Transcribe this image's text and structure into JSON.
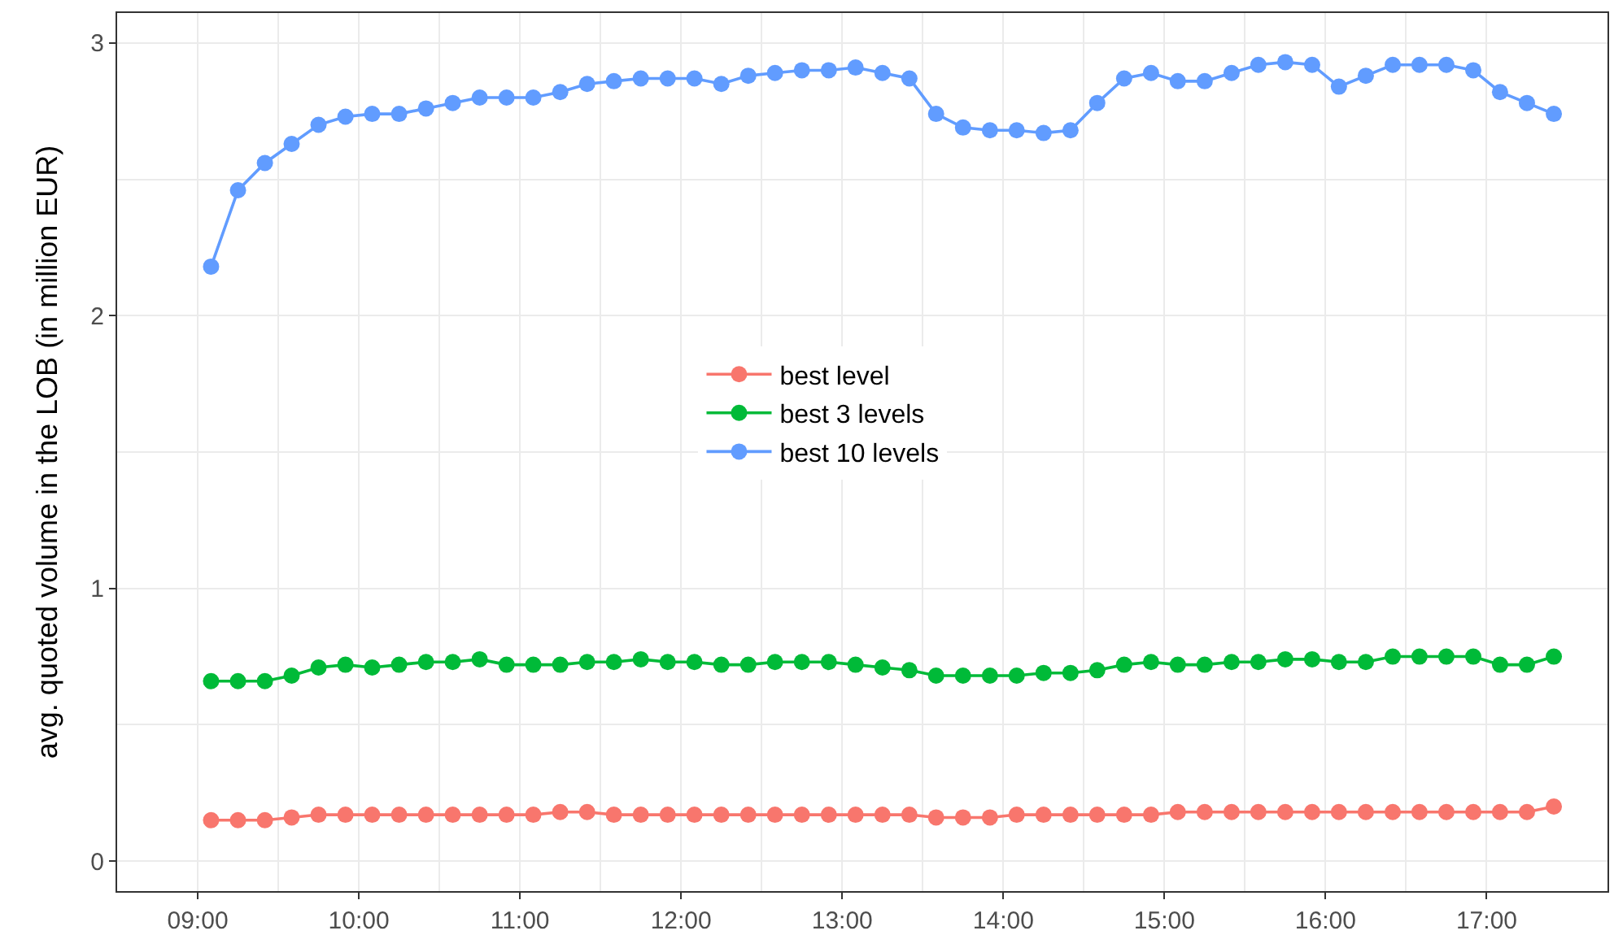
{
  "chart_data": {
    "type": "line",
    "ylabel": "avg. quoted volume in the LOB (in million EUR)",
    "x": [
      9.083,
      9.25,
      9.417,
      9.583,
      9.75,
      9.917,
      10.083,
      10.25,
      10.417,
      10.583,
      10.75,
      10.917,
      11.083,
      11.25,
      11.417,
      11.583,
      11.75,
      11.917,
      12.083,
      12.25,
      12.417,
      12.583,
      12.75,
      12.917,
      13.083,
      13.25,
      13.417,
      13.583,
      13.75,
      13.917,
      14.083,
      14.25,
      14.417,
      14.583,
      14.75,
      14.917,
      15.083,
      15.25,
      15.417,
      15.583,
      15.75,
      15.917,
      16.083,
      16.25,
      16.417,
      16.583,
      16.75,
      16.917,
      17.083,
      17.25,
      17.417
    ],
    "series": [
      {
        "name": "best level",
        "color": "#f8766d",
        "values": [
          0.15,
          0.15,
          0.15,
          0.16,
          0.17,
          0.17,
          0.17,
          0.17,
          0.17,
          0.17,
          0.17,
          0.17,
          0.17,
          0.18,
          0.18,
          0.17,
          0.17,
          0.17,
          0.17,
          0.17,
          0.17,
          0.17,
          0.17,
          0.17,
          0.17,
          0.17,
          0.17,
          0.16,
          0.16,
          0.16,
          0.17,
          0.17,
          0.17,
          0.17,
          0.17,
          0.17,
          0.18,
          0.18,
          0.18,
          0.18,
          0.18,
          0.18,
          0.18,
          0.18,
          0.18,
          0.18,
          0.18,
          0.18,
          0.18,
          0.18,
          0.2
        ]
      },
      {
        "name": "best 3 levels",
        "color": "#00ba38",
        "values": [
          0.66,
          0.66,
          0.66,
          0.68,
          0.71,
          0.72,
          0.71,
          0.72,
          0.73,
          0.73,
          0.74,
          0.72,
          0.72,
          0.72,
          0.73,
          0.73,
          0.74,
          0.73,
          0.73,
          0.72,
          0.72,
          0.73,
          0.73,
          0.73,
          0.72,
          0.71,
          0.7,
          0.68,
          0.68,
          0.68,
          0.68,
          0.69,
          0.69,
          0.7,
          0.72,
          0.73,
          0.72,
          0.72,
          0.73,
          0.73,
          0.74,
          0.74,
          0.73,
          0.73,
          0.75,
          0.75,
          0.75,
          0.75,
          0.72,
          0.72,
          0.75
        ]
      },
      {
        "name": "best 10 levels",
        "color": "#619cff",
        "values": [
          2.18,
          2.46,
          2.56,
          2.63,
          2.7,
          2.73,
          2.74,
          2.74,
          2.76,
          2.78,
          2.8,
          2.8,
          2.8,
          2.82,
          2.85,
          2.86,
          2.87,
          2.87,
          2.87,
          2.85,
          2.88,
          2.89,
          2.9,
          2.9,
          2.91,
          2.89,
          2.87,
          2.74,
          2.69,
          2.68,
          2.68,
          2.67,
          2.68,
          2.78,
          2.87,
          2.89,
          2.86,
          2.86,
          2.89,
          2.92,
          2.93,
          2.92,
          2.84,
          2.88,
          2.92,
          2.92,
          2.92,
          2.9,
          2.82,
          2.78,
          2.74
        ]
      }
    ],
    "xlim": [
      8.5,
      17.75
    ],
    "xticks": [
      {
        "value": 9,
        "label": "09:00"
      },
      {
        "value": 10,
        "label": "10:00"
      },
      {
        "value": 11,
        "label": "11:00"
      },
      {
        "value": 12,
        "label": "12:00"
      },
      {
        "value": 13,
        "label": "13:00"
      },
      {
        "value": 14,
        "label": "14:00"
      },
      {
        "value": 15,
        "label": "15:00"
      },
      {
        "value": 16,
        "label": "16:00"
      },
      {
        "value": 17,
        "label": "17:00"
      }
    ],
    "ylim": [
      -0.11,
      3.11
    ],
    "yticks": [
      0,
      1,
      2,
      3
    ],
    "grid": true,
    "legend": "center",
    "marker": "circle",
    "line_style": "solid"
  }
}
